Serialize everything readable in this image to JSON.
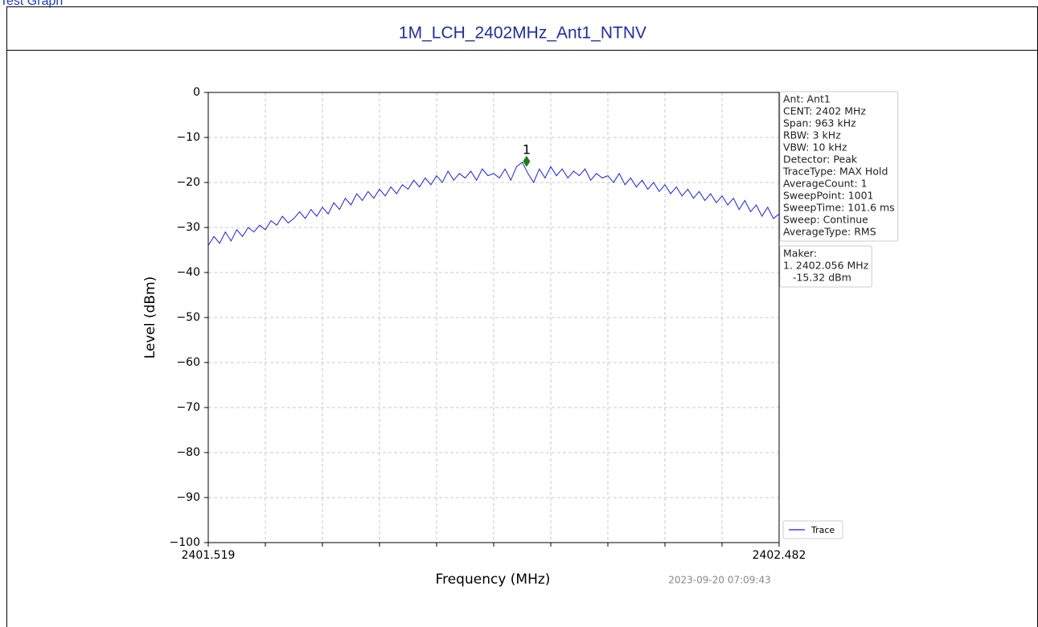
{
  "page_label": "Test Graph",
  "chart_data": {
    "type": "line",
    "title": "1M_LCH_2402MHz_Ant1_NTNV",
    "xlabel": "Frequency (MHz)",
    "ylabel": "Level (dBm)",
    "timestamp": "2023-09-20 07:09:43",
    "xlim": [
      2401.519,
      2402.482
    ],
    "xticks": [
      2401.519,
      2402.482
    ],
    "x_divisions": 10,
    "ylim": [
      -100,
      0
    ],
    "yticks": [
      {
        "value": -100,
        "label": "−100"
      },
      {
        "value": -90,
        "label": "−90"
      },
      {
        "value": -80,
        "label": "−80"
      },
      {
        "value": -70,
        "label": "−70"
      },
      {
        "value": -60,
        "label": "−60"
      },
      {
        "value": -50,
        "label": "−50"
      },
      {
        "value": -40,
        "label": "−40"
      },
      {
        "value": -30,
        "label": "−30"
      },
      {
        "value": -20,
        "label": "−20"
      },
      {
        "value": -10,
        "label": "−10"
      },
      0
    ],
    "grid": true,
    "legend": "lower right",
    "info": [
      "Ant: Ant1",
      "CENT: 2402 MHz",
      "Span: 963 kHz",
      "RBW: 3 kHz",
      "VBW: 10 kHz",
      "Detector: Peak",
      "TraceType: MAX Hold",
      "AverageCount: 1",
      "SweepPoint: 1001",
      "SweepTime: 101.6 ms",
      "Sweep: Continue",
      "AverageType: RMS"
    ],
    "marker_info": [
      "Maker:",
      "1. 2402.056 MHz",
      "   -15.32 dBm"
    ],
    "marker": {
      "label": "1",
      "x": 2402.056,
      "y": -15.32,
      "color": "#1a7f1a"
    },
    "x": [
      2401.519,
      2401.52863,
      2401.53826,
      2401.54789,
      2401.55752,
      2401.56715,
      2401.57678,
      2401.58641,
      2401.59604,
      2401.60567,
      2401.6153,
      2401.62493,
      2401.63456,
      2401.64419,
      2401.65382,
      2401.66345,
      2401.67308,
      2401.68271,
      2401.69234,
      2401.70197,
      2401.7116,
      2401.72123,
      2401.73086,
      2401.74049,
      2401.75012,
      2401.75975,
      2401.76938,
      2401.77901,
      2401.78864,
      2401.79827,
      2401.8079,
      2401.81753,
      2401.82716,
      2401.83679,
      2401.84642,
      2401.85605,
      2401.86568,
      2401.87531,
      2401.88494,
      2401.89457,
      2401.9042,
      2401.91383,
      2401.92346,
      2401.93309,
      2401.94272,
      2401.95235,
      2401.96198,
      2401.97161,
      2401.98124,
      2401.99087,
      2402.0005,
      2402.01013,
      2402.01976,
      2402.02939,
      2402.03902,
      2402.04865,
      2402.05828,
      2402.06791,
      2402.07754,
      2402.08717,
      2402.0968,
      2402.10643,
      2402.11606,
      2402.12569,
      2402.13532,
      2402.14495,
      2402.15458,
      2402.16421,
      2402.17384,
      2402.18347,
      2402.1931,
      2402.20273,
      2402.21236,
      2402.22199,
      2402.23162,
      2402.24125,
      2402.25088,
      2402.26051,
      2402.27014,
      2402.27977,
      2402.2894,
      2402.29903,
      2402.30866,
      2402.31829,
      2402.32792,
      2402.33755,
      2402.34718,
      2402.35681,
      2402.36644,
      2402.37607,
      2402.3857,
      2402.39533,
      2402.40496,
      2402.41459,
      2402.42422,
      2402.43385,
      2402.44348,
      2402.45311,
      2402.46274,
      2402.47237,
      2402.482
    ],
    "series": [
      {
        "name": "Trace",
        "color": "#1f1fdd",
        "values": [
          -34,
          -32,
          -33.5,
          -31,
          -33,
          -30.5,
          -32,
          -30,
          -31,
          -29.5,
          -30.5,
          -28.5,
          -29.5,
          -27.5,
          -29,
          -28,
          -26.5,
          -28,
          -26,
          -27.5,
          -25.5,
          -27,
          -24.5,
          -26,
          -23.5,
          -25,
          -22.5,
          -24,
          -22,
          -23.5,
          -21.5,
          -23,
          -21,
          -22.5,
          -20.5,
          -21.5,
          -19.5,
          -21,
          -19,
          -20.5,
          -18.5,
          -20,
          -17.5,
          -19.5,
          -18,
          -19,
          -17.5,
          -19.5,
          -17,
          -18.5,
          -18,
          -19,
          -17,
          -19.5,
          -16.5,
          -15.5,
          -18,
          -20,
          -17,
          -19,
          -16.5,
          -18.5,
          -17,
          -19,
          -17.5,
          -18.5,
          -17,
          -19.5,
          -18,
          -19,
          -18.5,
          -20,
          -18,
          -20.5,
          -19,
          -21,
          -19.5,
          -21.5,
          -20,
          -22,
          -20.5,
          -22.5,
          -21,
          -23,
          -21.5,
          -23.5,
          -22,
          -24,
          -22.5,
          -24.5,
          -23,
          -25,
          -23.5,
          -26,
          -24,
          -26.5,
          -25,
          -27.5,
          -25.5,
          -28,
          -27
        ]
      }
    ]
  }
}
